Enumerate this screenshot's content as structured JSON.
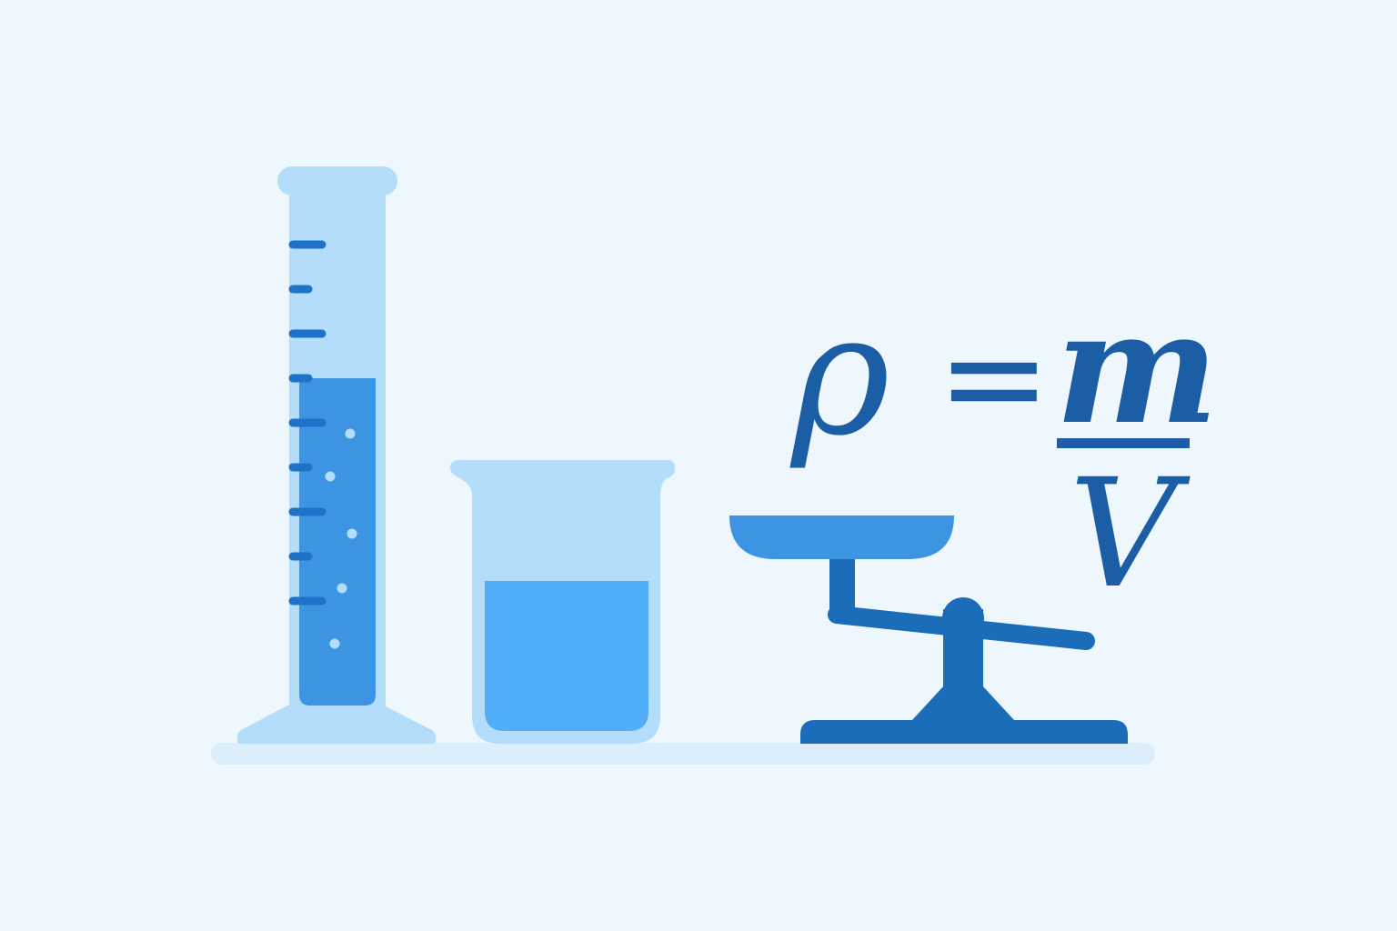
{
  "formula": {
    "lhs": "ρ",
    "eq": "=",
    "numerator": "m",
    "denominator": "V"
  },
  "colors": {
    "background": "#EEF7FD",
    "glass": "#B3DDFB",
    "liquid_dark": "#3C94E2",
    "liquid_light": "#50AEF8",
    "marking": "#1E73C8",
    "scale": "#1C6DB9",
    "text": "#1C5EA5",
    "shelf": "#DCEEFC"
  },
  "icons": [
    "graduated-cylinder-icon",
    "beaker-icon",
    "balance-scale-icon"
  ]
}
